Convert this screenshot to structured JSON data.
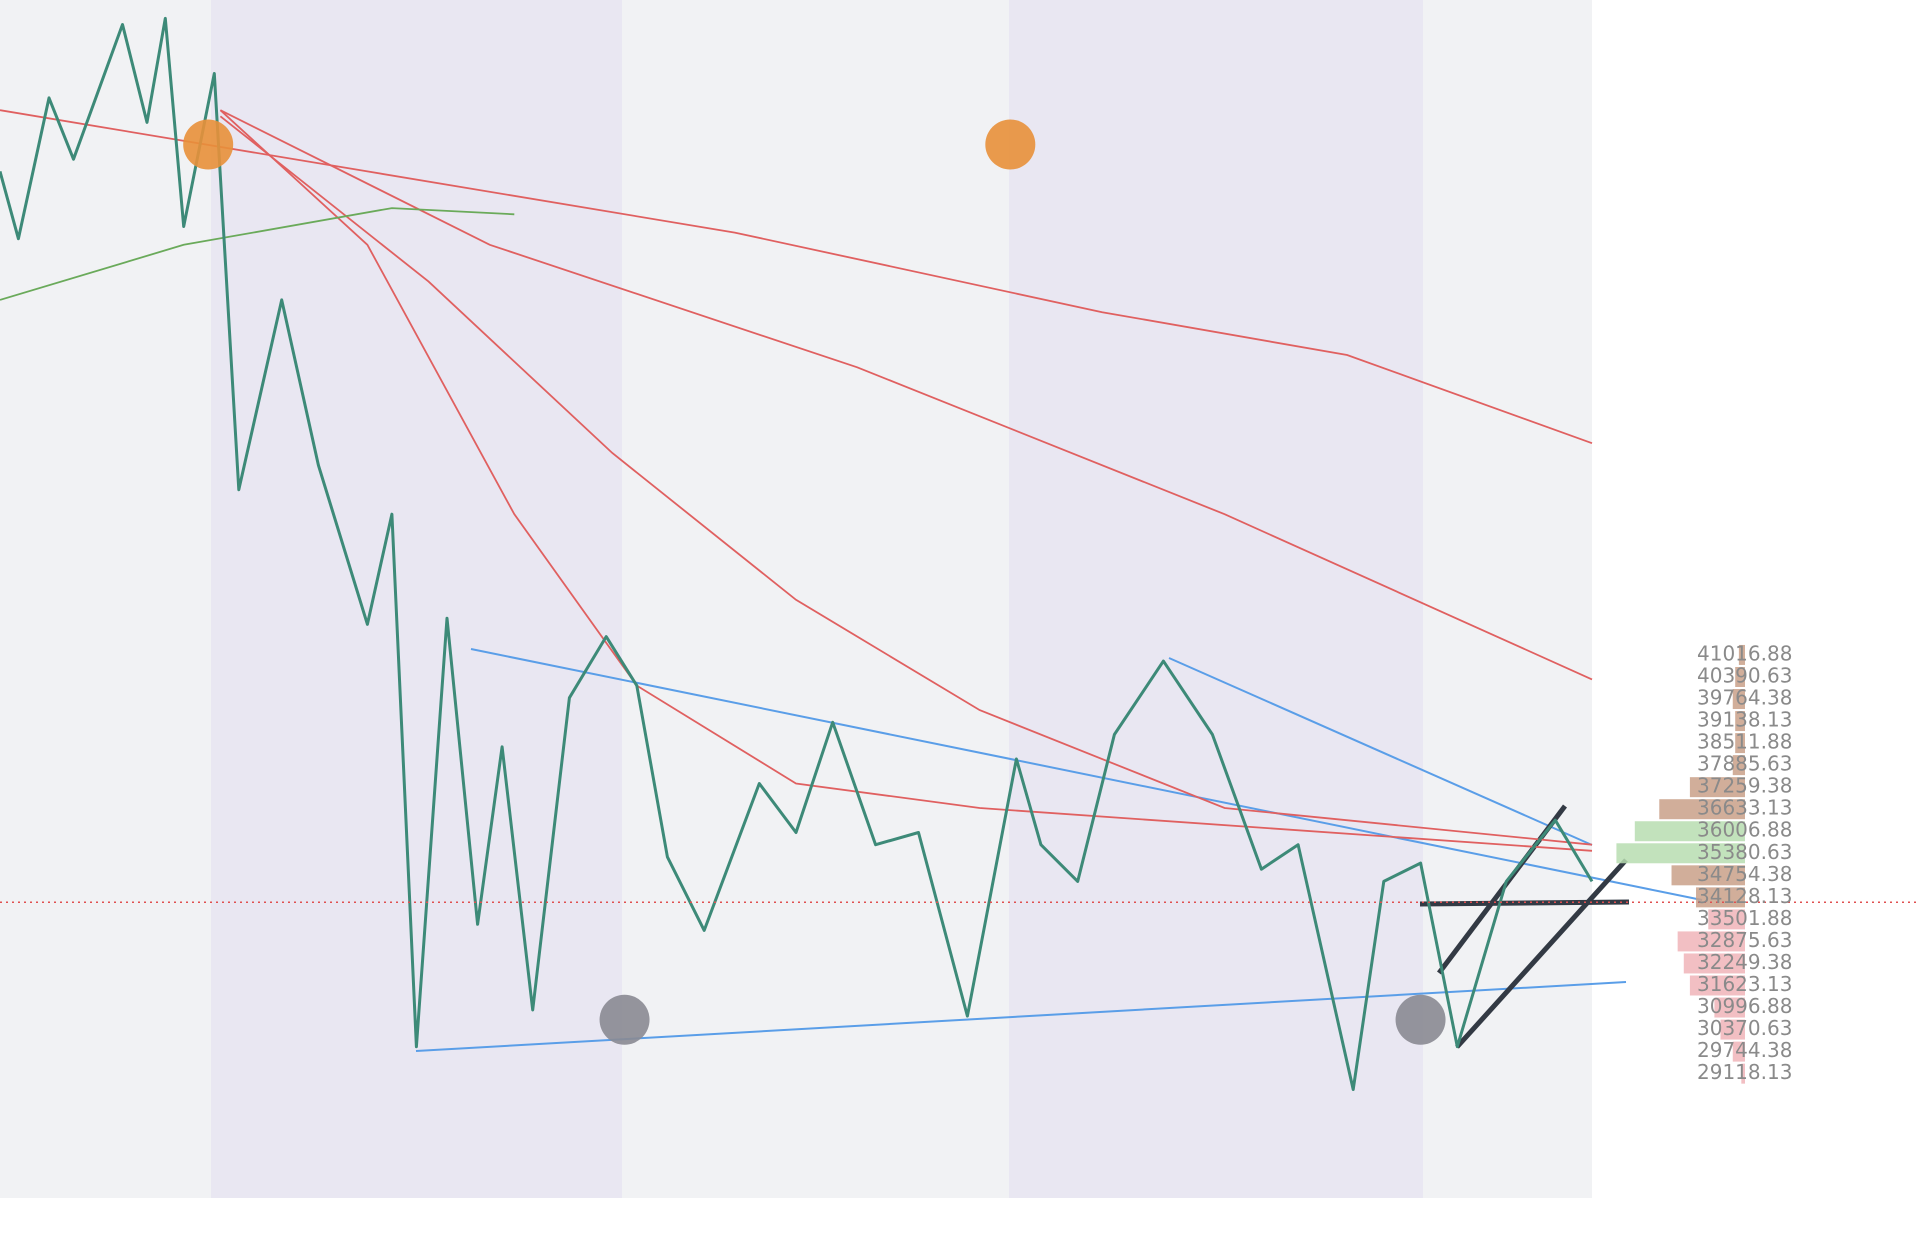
{
  "chart_data": {
    "type": "line",
    "xlim": [
      0,
      260
    ],
    "ylim": [
      24561,
      59630
    ],
    "price": {
      "color": "#3d8a78",
      "x": [
        0,
        3,
        8,
        12,
        20,
        24,
        27,
        30,
        35,
        39,
        46,
        52,
        60,
        64,
        68,
        73,
        78,
        82,
        87,
        93,
        99,
        104,
        109,
        115,
        124,
        130,
        136,
        143,
        150,
        158,
        166,
        170,
        176,
        182,
        190,
        198,
        206,
        212,
        221,
        226,
        232,
        238,
        246,
        254,
        260
      ],
      "values": [
        54759,
        52846,
        56847,
        55107,
        58934,
        56151,
        59108,
        53194,
        57542,
        45714,
        51106,
        46409,
        41887,
        45018,
        29884,
        42061,
        33363,
        38408,
        30928,
        39799,
        41539,
        40147,
        35277,
        33189,
        37364,
        35972,
        39104,
        35625,
        35972,
        30754,
        38060,
        35625,
        34581,
        38756,
        40843,
        38756,
        34929,
        35625,
        28667,
        34581,
        35103,
        29884,
        34581,
        36320,
        34581
      ]
    },
    "overlays": [
      {
        "color": "#e06060",
        "x": [
          0,
          60,
          120,
          180,
          220,
          260
        ],
        "values": [
          56499,
          54759,
          53020,
          50758,
          49541,
          47036
        ]
      },
      {
        "color": "#e06060",
        "x": [
          36,
          80,
          140,
          200,
          260
        ],
        "values": [
          56499,
          52672,
          49193,
          45018,
          40321
        ]
      },
      {
        "color": "#e06060",
        "x": [
          36,
          70,
          100,
          130,
          160,
          200,
          260
        ],
        "values": [
          56325,
          51628,
          46757,
          42583,
          39451,
          36668,
          35625
        ]
      },
      {
        "color": "#e06060",
        "x": [
          36,
          60,
          84,
          104,
          130,
          160,
          260
        ],
        "values": [
          56499,
          52672,
          45018,
          40147,
          37364,
          36668,
          35451
        ]
      },
      {
        "color": "#6aaa5a",
        "x": [
          0,
          30,
          64,
          84
        ],
        "values": [
          51106,
          52672,
          53715,
          53541
        ]
      }
    ],
    "last_price": 33989,
    "last_price_color": "#e05050",
    "markers": [
      {
        "x": 34,
        "y": 55524,
        "color": "#e8903a"
      },
      {
        "x": 165,
        "y": 55524,
        "color": "#e8903a"
      },
      {
        "x": 102,
        "y": 30650,
        "color": "#8a8a92"
      },
      {
        "x": 232,
        "y": 30650,
        "color": "#8a8a92"
      }
    ],
    "profile": {
      "levels": [
        41016.88,
        40390.63,
        39764.38,
        39138.13,
        38511.88,
        37885.63,
        37259.38,
        36633.13,
        36006.88,
        35380.63,
        34754.38,
        34128.13,
        33501.88,
        32875.63,
        32249.38,
        31623.13,
        30996.88,
        30370.63,
        29744.38,
        29118.13
      ],
      "values": [
        5,
        8,
        10,
        8,
        8,
        10,
        45,
        70,
        90,
        105,
        60,
        40,
        30,
        55,
        50,
        45,
        25,
        20,
        10,
        3
      ],
      "colors": [
        "#c9a088",
        "#c9a088",
        "#c9a088",
        "#c9a088",
        "#c9a088",
        "#c9a088",
        "#c9a088",
        "#c9a088",
        "#b7ddb0",
        "#b7ddb0",
        "#c9a088",
        "#c9a088",
        "#f0b4b8",
        "#f0b4b8",
        "#f0b4b8",
        "#f0b4b8",
        "#f0b4b8",
        "#f0b4b8",
        "#f0b4b8",
        "#f0b4b8"
      ]
    }
  }
}
